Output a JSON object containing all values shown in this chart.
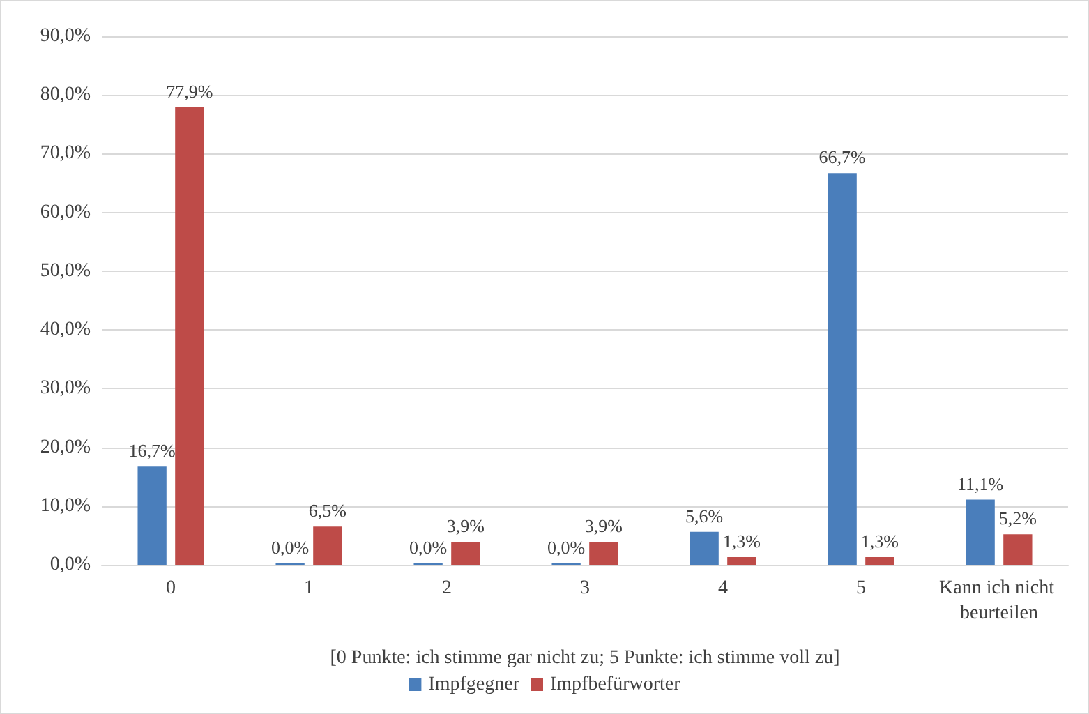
{
  "chart_data": {
    "type": "bar",
    "xlabel": "[0 Punkte: ich stimme gar nicht zu; 5 Punkte: ich stimme voll zu]",
    "categories": [
      "0",
      "1",
      "2",
      "3",
      "4",
      "5",
      "Kann ich nicht beurteilen"
    ],
    "series": [
      {
        "name": "Impfgegner",
        "color": "#4a7ebb",
        "values": [
          16.7,
          0,
          0,
          0,
          5.6,
          66.7,
          11.1
        ],
        "value_labels": [
          "16,7%",
          "0,0%",
          "0,0%",
          "0,0%",
          "5,6%",
          "66,7%",
          "11,1%"
        ]
      },
      {
        "name": "Impfbefürworter",
        "color": "#be4b48",
        "values": [
          77.9,
          6.5,
          3.9,
          3.9,
          1.3,
          1.3,
          5.2
        ],
        "value_labels": [
          "77,9%",
          "6,5%",
          "3,9%",
          "3,9%",
          "1,3%",
          "1,3%",
          "5,2%"
        ]
      }
    ],
    "ylim": [
      0,
      90
    ],
    "yticks": [
      {
        "value": 0,
        "label": "0,0%"
      },
      {
        "value": 10,
        "label": "10,0%"
      },
      {
        "value": 20,
        "label": "20,0%"
      },
      {
        "value": 30,
        "label": "30,0%"
      },
      {
        "value": 40,
        "label": "40,0%"
      },
      {
        "value": 50,
        "label": "50,0%"
      },
      {
        "value": 60,
        "label": "60,0%"
      },
      {
        "value": 70,
        "label": "70,0%"
      },
      {
        "value": 80,
        "label": "80,0%"
      },
      {
        "value": 90,
        "label": "90,0%"
      }
    ],
    "grid": "y",
    "legend": "bottom"
  }
}
